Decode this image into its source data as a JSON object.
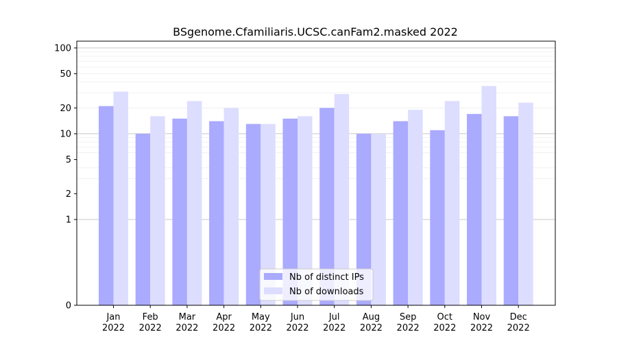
{
  "chart_data": {
    "type": "bar",
    "title": "BSgenome.Cfamiliaris.UCSC.canFam2.masked 2022",
    "xlabel": "",
    "ylabel": "",
    "yscale": "symlog",
    "ylim": [
      0,
      120
    ],
    "yticks": [
      0,
      1,
      2,
      5,
      10,
      20,
      50,
      100
    ],
    "grid": true,
    "legend_position": "bottom-center",
    "categories": [
      {
        "month": "Jan",
        "year": "2022"
      },
      {
        "month": "Feb",
        "year": "2022"
      },
      {
        "month": "Mar",
        "year": "2022"
      },
      {
        "month": "Apr",
        "year": "2022"
      },
      {
        "month": "May",
        "year": "2022"
      },
      {
        "month": "Jun",
        "year": "2022"
      },
      {
        "month": "Jul",
        "year": "2022"
      },
      {
        "month": "Aug",
        "year": "2022"
      },
      {
        "month": "Sep",
        "year": "2022"
      },
      {
        "month": "Oct",
        "year": "2022"
      },
      {
        "month": "Nov",
        "year": "2022"
      },
      {
        "month": "Dec",
        "year": "2022"
      }
    ],
    "series": [
      {
        "name": "Nb of distinct IPs",
        "color": "#aaaaff",
        "values": [
          21,
          10,
          15,
          14,
          13,
          15,
          20,
          10,
          14,
          11,
          17,
          16
        ]
      },
      {
        "name": "Nb of downloads",
        "color": "#ddddff",
        "values": [
          31,
          16,
          24,
          20,
          13,
          16,
          29,
          10,
          19,
          24,
          36,
          23
        ]
      }
    ]
  }
}
